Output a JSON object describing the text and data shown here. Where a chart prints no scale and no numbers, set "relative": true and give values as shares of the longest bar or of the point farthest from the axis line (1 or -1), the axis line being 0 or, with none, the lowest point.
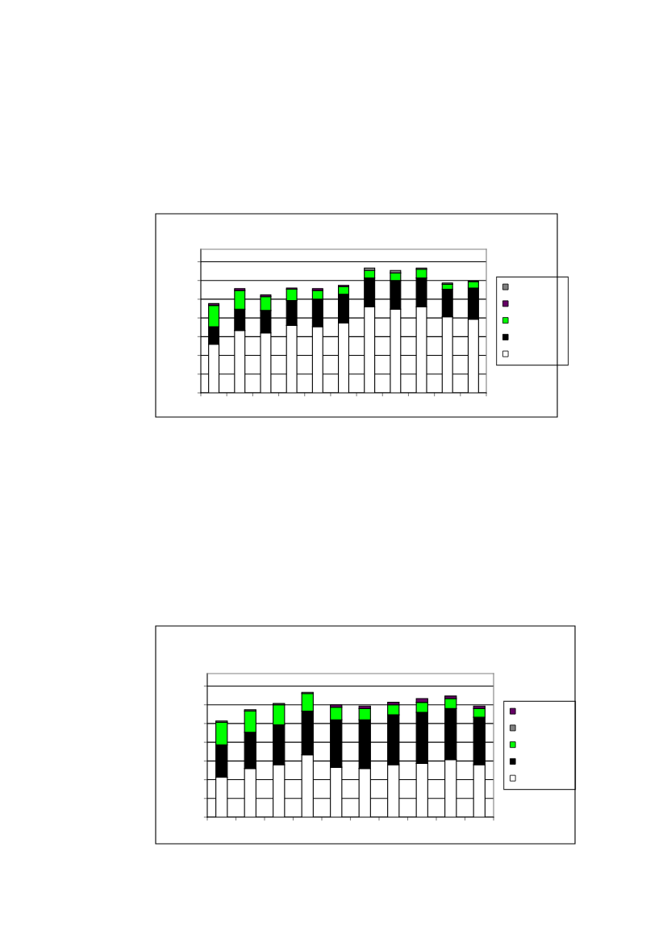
{
  "chart_data": [
    {
      "type": "bar",
      "stacked": true,
      "relative": true,
      "grid": "y",
      "categories": [
        null,
        null,
        null,
        null,
        null,
        null,
        null,
        null,
        null,
        null,
        null
      ],
      "series": [
        {
          "color": "#ffffff",
          "values": [
            0.39,
            0.5,
            0.48,
            0.54,
            0.53,
            0.56,
            0.69,
            0.67,
            0.69,
            0.61,
            0.59
          ]
        },
        {
          "color": "#000000",
          "values": [
            0.14,
            0.17,
            0.18,
            0.2,
            0.22,
            0.23,
            0.23,
            0.23,
            0.23,
            0.22,
            0.25
          ]
        },
        {
          "color": "#00ff00",
          "values": [
            0.17,
            0.15,
            0.11,
            0.09,
            0.07,
            0.06,
            0.06,
            0.06,
            0.07,
            0.04,
            0.05
          ]
        },
        {
          "color": "#660066",
          "values": [
            0.015,
            0.015,
            0.015,
            0.01,
            0.015,
            0.01,
            0,
            0,
            0,
            0,
            0
          ]
        },
        {
          "color": "#808080",
          "values": [
            0,
            0,
            0,
            0,
            0,
            0,
            0.02,
            0.02,
            0.01,
            0.01,
            0.005
          ]
        }
      ]
    },
    {
      "type": "bar",
      "stacked": true,
      "relative": true,
      "grid": "y",
      "categories": [
        null,
        null,
        null,
        null,
        null,
        null,
        null,
        null,
        null,
        null
      ],
      "series": [
        {
          "color": "#ffffff",
          "values": [
            0.32,
            0.39,
            0.42,
            0.5,
            0.4,
            0.39,
            0.42,
            0.43,
            0.46,
            0.42
          ]
        },
        {
          "color": "#000000",
          "values": [
            0.26,
            0.29,
            0.32,
            0.35,
            0.38,
            0.39,
            0.4,
            0.41,
            0.41,
            0.38
          ]
        },
        {
          "color": "#00ff00",
          "values": [
            0.18,
            0.17,
            0.16,
            0.14,
            0.1,
            0.09,
            0.08,
            0.08,
            0.08,
            0.07
          ]
        },
        {
          "color": "#808080",
          "values": [
            0.01,
            0.01,
            0.01,
            0.01,
            0,
            0,
            0,
            0,
            0,
            0
          ]
        },
        {
          "color": "#660066",
          "values": [
            0,
            0,
            0,
            0,
            0.02,
            0.02,
            0.02,
            0.03,
            0.02,
            0.02
          ]
        }
      ]
    }
  ]
}
